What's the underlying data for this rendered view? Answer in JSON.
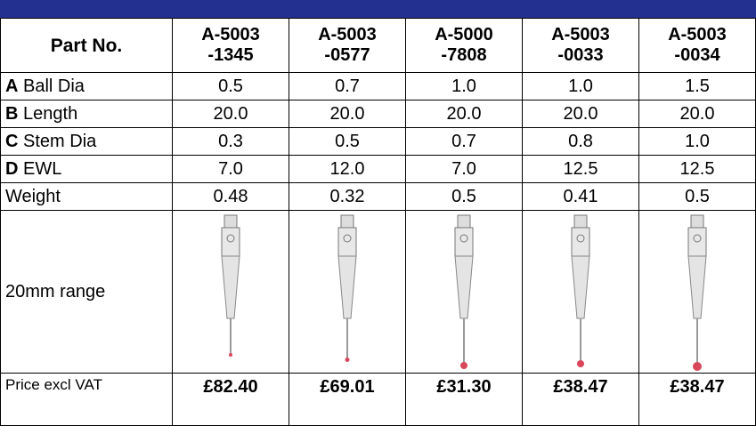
{
  "table": {
    "header": [
      "Part No.",
      "A-5003\n-1345",
      "A-5003\n-0577",
      "A-5000\n-7808",
      "A-5003\n-0033",
      "A-5003\n-0034"
    ],
    "rows": [
      {
        "key": "A",
        "label": "Ball Dia",
        "cells": [
          "0.5",
          "0.7",
          "1.0",
          "1.0",
          "1.5"
        ]
      },
      {
        "key": "B",
        "label": "Length",
        "cells": [
          "20.0",
          "20.0",
          "20.0",
          "20.0",
          "20.0"
        ]
      },
      {
        "key": "C",
        "label": "Stem Dia",
        "cells": [
          "0.3",
          "0.5",
          "0.7",
          "0.8",
          "1.0"
        ]
      },
      {
        "key": "D",
        "label": "EWL",
        "cells": [
          "7.0",
          "12.0",
          "7.0",
          "12.5",
          "12.5"
        ]
      },
      {
        "label": "Weight",
        "cells": [
          "0.48",
          "0.32",
          "0.5",
          "0.41",
          "0.5"
        ]
      }
    ],
    "image_row_label": "20mm range",
    "price_label": "Price excl VAT",
    "prices": [
      "£82.40",
      "£69.01",
      "£31.30",
      "£38.47",
      "£38.47"
    ]
  }
}
